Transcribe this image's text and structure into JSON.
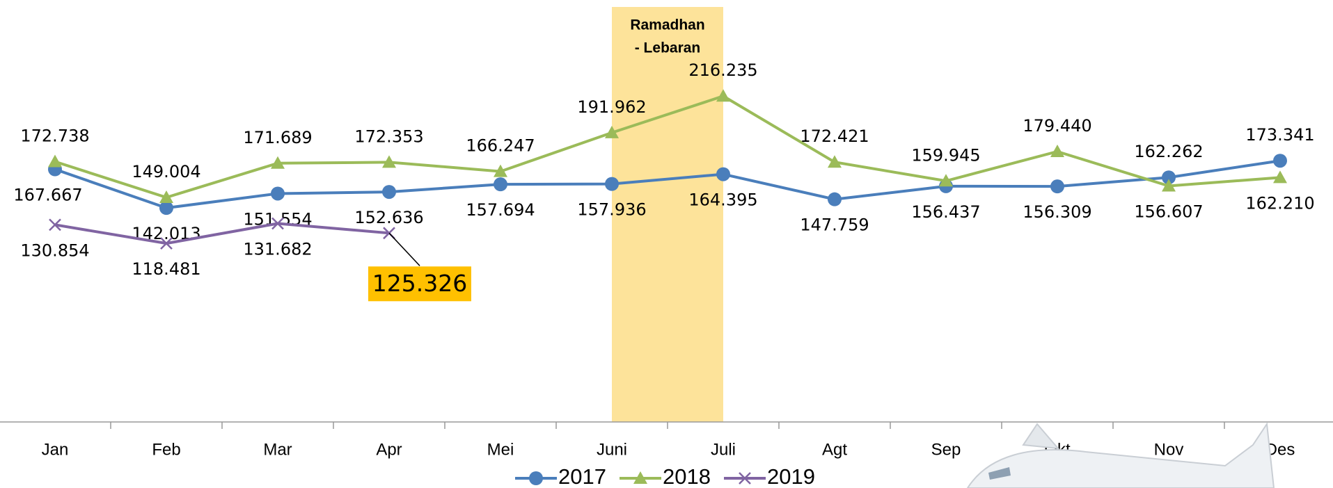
{
  "chart_data": {
    "type": "line",
    "categories": [
      "Jan",
      "Feb",
      "Mar",
      "Apr",
      "Mei",
      "Juni",
      "Juli",
      "Agt",
      "Sep",
      "Okt",
      "Nov",
      "Des"
    ],
    "series": [
      {
        "name": "2017",
        "color": "#4a7ebb",
        "marker": "circle",
        "values": [
          167.667,
          142.013,
          151.554,
          152.636,
          157.694,
          157.936,
          164.395,
          147.759,
          156.437,
          156.309,
          162.262,
          173.341
        ],
        "value_labels": [
          "167.667",
          "142.013",
          "151.554",
          "152.636",
          "157.694",
          "157.936",
          "164.395",
          "147.759",
          "156.437",
          "156.309",
          "162.262",
          "173.341"
        ]
      },
      {
        "name": "2018",
        "color": "#9bbb59",
        "marker": "triangle",
        "values": [
          172.738,
          149.004,
          171.689,
          172.353,
          166.247,
          191.962,
          216.235,
          172.421,
          159.945,
          179.44,
          156.607,
          162.21
        ],
        "value_labels": [
          "172.738",
          "149.004",
          "171.689",
          "172.353",
          "166.247",
          "191.962",
          "216.235",
          "172.421",
          "159.945",
          "179.440",
          "156.607",
          "162.210"
        ]
      },
      {
        "name": "2019",
        "color": "#8064a2",
        "marker": "x",
        "values": [
          130.854,
          118.481,
          131.682,
          125.326,
          null,
          null,
          null,
          null,
          null,
          null,
          null,
          null
        ],
        "value_labels": [
          "130.854",
          "118.481",
          "131.682",
          "125.326",
          null,
          null,
          null,
          null,
          null,
          null,
          null,
          null
        ]
      }
    ],
    "annotation": {
      "text": [
        "Ramadhan",
        "- Lebaran"
      ],
      "color": "#fde39a"
    },
    "ylim": [
      0,
      280
    ],
    "legend": "bottom"
  }
}
